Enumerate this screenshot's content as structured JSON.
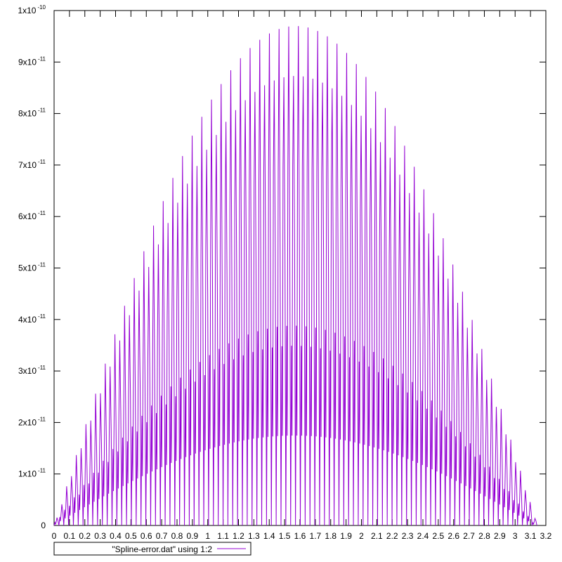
{
  "chart_data": {
    "type": "line",
    "title": "",
    "xlabel": "",
    "ylabel": "",
    "xlim": [
      0,
      3.2
    ],
    "ylim": [
      0,
      1e-10
    ],
    "grid": false,
    "legend_position": "bottom-left",
    "x_ticks": [
      {
        "value": 0,
        "label": "0"
      },
      {
        "value": 0.1,
        "label": "0.1"
      },
      {
        "value": 0.2,
        "label": "0.2"
      },
      {
        "value": 0.3,
        "label": "0.3"
      },
      {
        "value": 0.4,
        "label": "0.4"
      },
      {
        "value": 0.5,
        "label": "0.5"
      },
      {
        "value": 0.6,
        "label": "0.6"
      },
      {
        "value": 0.7,
        "label": "0.7"
      },
      {
        "value": 0.8,
        "label": "0.8"
      },
      {
        "value": 0.9,
        "label": "0.9"
      },
      {
        "value": 1.0,
        "label": "1"
      },
      {
        "value": 1.1,
        "label": "1.1"
      },
      {
        "value": 1.2,
        "label": "1.2"
      },
      {
        "value": 1.3,
        "label": "1.3"
      },
      {
        "value": 1.4,
        "label": "1.4"
      },
      {
        "value": 1.5,
        "label": "1.5"
      },
      {
        "value": 1.6,
        "label": "1.6"
      },
      {
        "value": 1.7,
        "label": "1.7"
      },
      {
        "value": 1.8,
        "label": "1.8"
      },
      {
        "value": 1.9,
        "label": "1.9"
      },
      {
        "value": 2.0,
        "label": "2"
      },
      {
        "value": 2.1,
        "label": "2.1"
      },
      {
        "value": 2.2,
        "label": "2.2"
      },
      {
        "value": 2.3,
        "label": "2.3"
      },
      {
        "value": 2.4,
        "label": "2.4"
      },
      {
        "value": 2.5,
        "label": "2.5"
      },
      {
        "value": 2.6,
        "label": "2.6"
      },
      {
        "value": 2.7,
        "label": "2.7"
      },
      {
        "value": 2.8,
        "label": "2.8"
      },
      {
        "value": 2.9,
        "label": "2.9"
      },
      {
        "value": 3.0,
        "label": "3"
      },
      {
        "value": 3.1,
        "label": "3.1"
      },
      {
        "value": 3.2,
        "label": "3.2"
      }
    ],
    "y_ticks": [
      {
        "value": 0,
        "mantissa": "0",
        "exponent": ""
      },
      {
        "value": 1e-11,
        "mantissa": "1x10",
        "exponent": "-11"
      },
      {
        "value": 2e-11,
        "mantissa": "2x10",
        "exponent": "-11"
      },
      {
        "value": 3e-11,
        "mantissa": "3x10",
        "exponent": "-11"
      },
      {
        "value": 4e-11,
        "mantissa": "4x10",
        "exponent": "-11"
      },
      {
        "value": 5e-11,
        "mantissa": "5x10",
        "exponent": "-11"
      },
      {
        "value": 6e-11,
        "mantissa": "6x10",
        "exponent": "-11"
      },
      {
        "value": 7e-11,
        "mantissa": "7x10",
        "exponent": "-11"
      },
      {
        "value": 8e-11,
        "mantissa": "8x10",
        "exponent": "-11"
      },
      {
        "value": 9e-11,
        "mantissa": "9x10",
        "exponent": "-11"
      },
      {
        "value": 1e-10,
        "mantissa": "1x10",
        "exponent": "-10"
      }
    ],
    "series": [
      {
        "name": "\"Spline-error.dat\" using 1:2",
        "color": "#9400d3",
        "envelope": {
          "description_of_shape": "oscillating error with one hump per spline interval; peak heights follow a sin-shaped envelope",
          "x_start": 0,
          "x_end": 3.1416,
          "intervals": 100,
          "peak_max_y": 9.7e-11
        }
      }
    ]
  }
}
